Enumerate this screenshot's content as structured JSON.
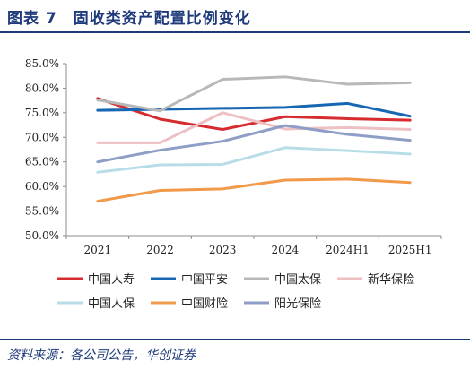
{
  "header": {
    "title": "图表 7　固收类资产配置比例变化"
  },
  "footer": {
    "source": "资料来源：各公司公告，华创证券"
  },
  "chart_data": {
    "type": "line",
    "categories": [
      "2021",
      "2022",
      "2023",
      "2024",
      "2024H1",
      "2025H1"
    ],
    "ylim": [
      50.0,
      85.0
    ],
    "yticks": [
      "50.0%",
      "55.0%",
      "60.0%",
      "65.0%",
      "70.0%",
      "75.0%",
      "80.0%",
      "85.0%"
    ],
    "legend_position": "bottom",
    "grid": false,
    "series": [
      {
        "name": "中国人寿",
        "color": "#d62b2f",
        "values": [
          77.9,
          73.7,
          71.6,
          74.2,
          73.8,
          73.5
        ]
      },
      {
        "name": "中国平安",
        "color": "#1666b3",
        "values": [
          75.5,
          75.7,
          75.9,
          76.1,
          76.9,
          74.3
        ]
      },
      {
        "name": "中国太保",
        "color": "#b8b8b8",
        "values": [
          77.6,
          75.4,
          81.8,
          82.3,
          80.8,
          81.1
        ]
      },
      {
        "name": "新华保险",
        "color": "#eebfc3",
        "values": [
          68.9,
          68.9,
          75.0,
          71.7,
          72.0,
          71.6
        ]
      },
      {
        "name": "中国人保",
        "color": "#b8dde8",
        "values": [
          62.9,
          64.4,
          64.5,
          67.9,
          67.3,
          66.6
        ]
      },
      {
        "name": "中国财险",
        "color": "#f09a4a",
        "values": [
          57.0,
          59.2,
          59.5,
          61.3,
          61.5,
          60.8
        ]
      },
      {
        "name": "阳光保险",
        "color": "#8f9ec7",
        "values": [
          65.0,
          67.4,
          69.2,
          72.4,
          70.6,
          69.4
        ]
      }
    ]
  }
}
